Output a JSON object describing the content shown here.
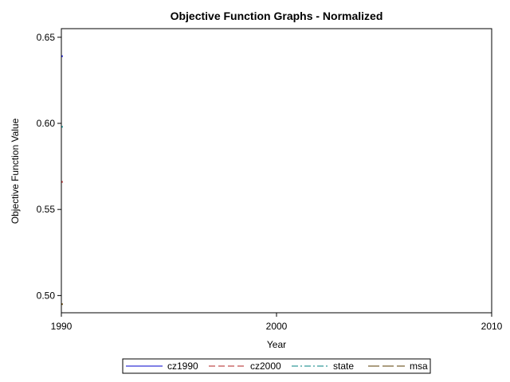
{
  "chart_data": {
    "type": "line",
    "title": "Objective Function Graphs - Normalized",
    "xlabel": "Year",
    "ylabel": "Objective Function Value",
    "xlim": [
      1990,
      2010
    ],
    "ylim": [
      0.49,
      0.655
    ],
    "x_ticks": [
      {
        "value": 1990,
        "label": "1990"
      },
      {
        "value": 2000,
        "label": "2000"
      },
      {
        "value": 2010,
        "label": "2010"
      }
    ],
    "y_ticks": [
      {
        "value": 0.5,
        "label": "0.50"
      },
      {
        "value": 0.55,
        "label": "0.55"
      },
      {
        "value": 0.6,
        "label": "0.60"
      },
      {
        "value": 0.65,
        "label": "0.65"
      }
    ],
    "grid": false,
    "legend_position": "bottom",
    "series": [
      {
        "name": "cz1990",
        "color": "#0000cc",
        "dash": "solid",
        "points": [
          [
            1990,
            0.639
          ]
        ]
      },
      {
        "name": "cz2000",
        "color": "#b22222",
        "dash": "dashed",
        "points": [
          [
            1990,
            0.566
          ]
        ]
      },
      {
        "name": "state",
        "color": "#008080",
        "dash": "dashdot",
        "points": [
          [
            1990,
            0.598
          ]
        ]
      },
      {
        "name": "msa",
        "color": "#5a3b00",
        "dash": "longdash",
        "points": [
          [
            1990,
            0.495
          ]
        ]
      }
    ]
  }
}
